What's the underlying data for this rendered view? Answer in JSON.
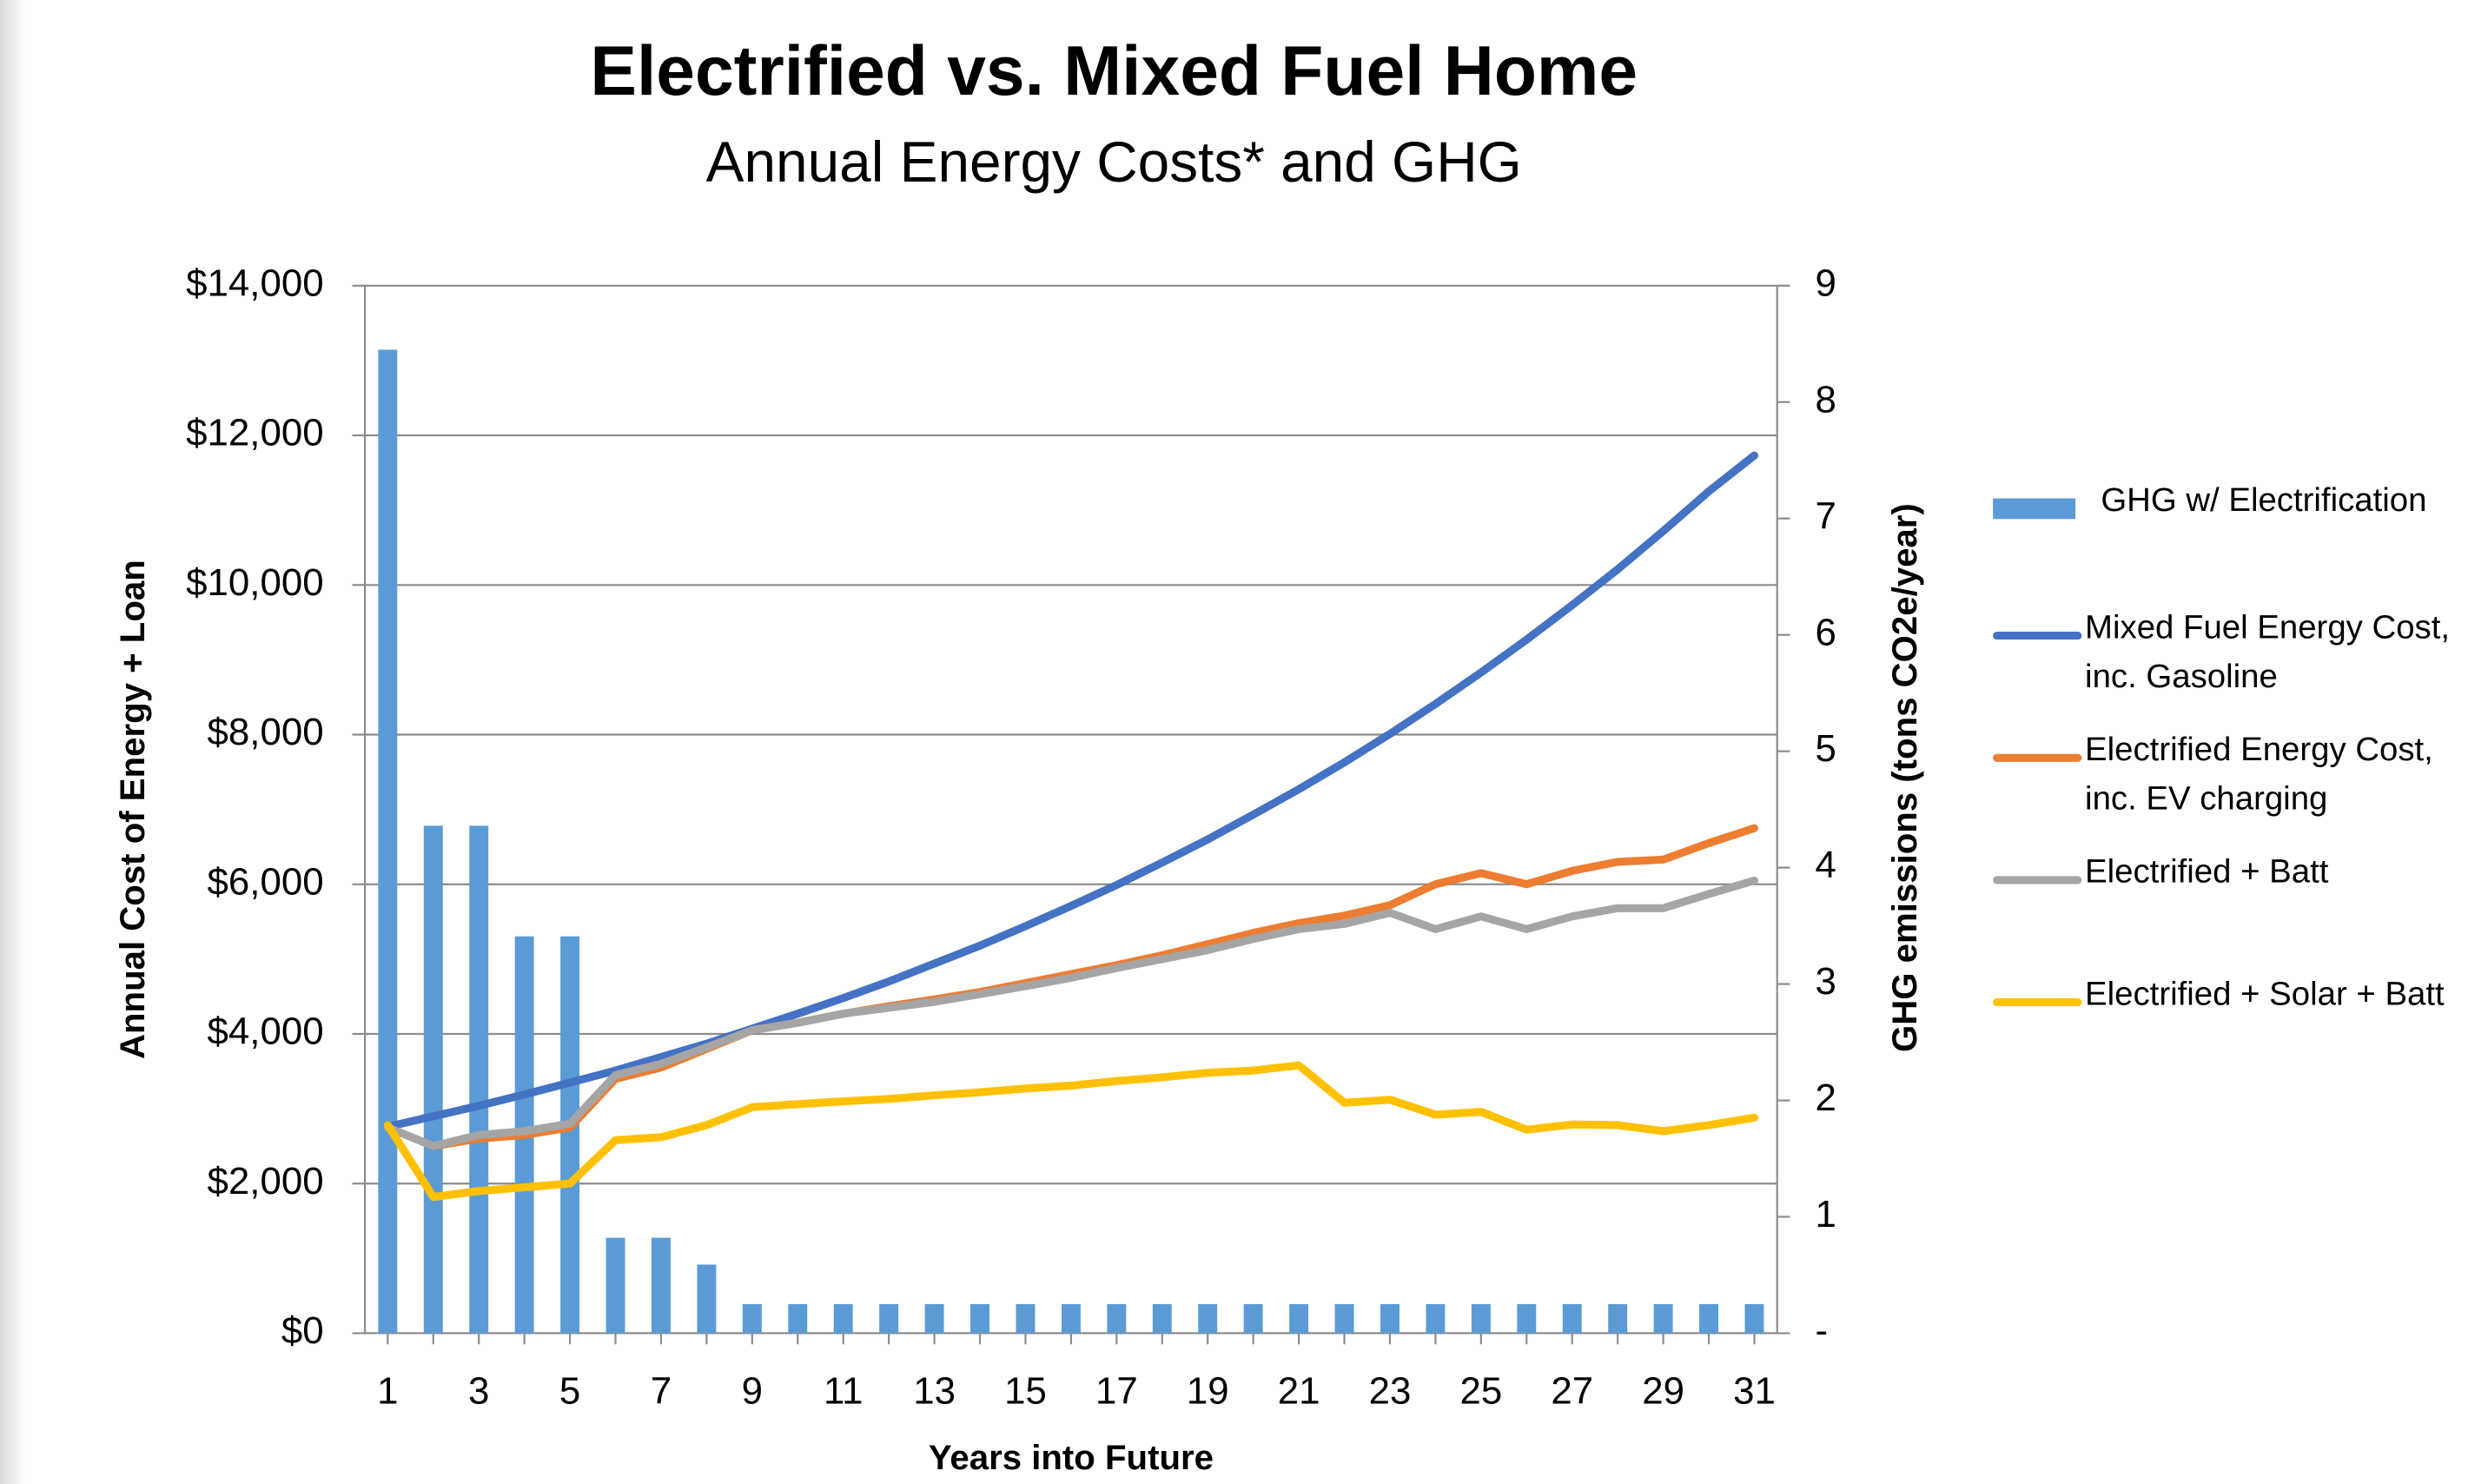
{
  "chart_data": {
    "type": "combo",
    "title": "Electrified vs. Mixed Fuel Home",
    "subtitle": "Annual Energy Costs* and GHG",
    "x_label": "Years into Future",
    "y_label": "Annual Cost of Energy + Loan",
    "y2_label": "GHG emissions (tons CO2e/year)",
    "categories": [
      1,
      null,
      3,
      null,
      5,
      null,
      7,
      null,
      9,
      null,
      11,
      null,
      13,
      null,
      15,
      null,
      17,
      null,
      19,
      null,
      21,
      null,
      23,
      null,
      25,
      null,
      27,
      null,
      29,
      null,
      31
    ],
    "ylim": [
      0,
      14000
    ],
    "yticks": [
      {
        "value": 0,
        "label": "$0"
      },
      {
        "value": 2000,
        "label": "$2,000"
      },
      {
        "value": 4000,
        "label": "$4,000"
      },
      {
        "value": 6000,
        "label": "$6,000"
      },
      {
        "value": 8000,
        "label": "$8,000"
      },
      {
        "value": 10000,
        "label": "$10,000"
      },
      {
        "value": 12000,
        "label": "$12,000"
      },
      {
        "value": 14000,
        "label": "$14,000"
      }
    ],
    "y2lim": [
      0,
      9
    ],
    "y2ticks": [
      {
        "value": 0,
        "label": "-"
      },
      1,
      2,
      3,
      4,
      5,
      6,
      7,
      8,
      9
    ],
    "grid": true,
    "legend": "right",
    "series": [
      {
        "name": "GHG w/ Electrification",
        "type": "bar",
        "axis": "y2",
        "color": "#5b9bd5",
        "values": [
          8.45,
          4.36,
          4.36,
          3.41,
          3.41,
          0.82,
          0.82,
          0.59,
          0.25,
          0.25,
          0.25,
          0.25,
          0.25,
          0.25,
          0.25,
          0.25,
          0.25,
          0.25,
          0.25,
          0.25,
          0.25,
          0.25,
          0.25,
          0.25,
          0.25,
          0.25,
          0.25,
          0.25,
          0.25,
          0.25,
          0.25
        ]
      },
      {
        "name": "Mixed Fuel Energy Cost, inc. Gasoline",
        "type": "line",
        "color": "#4472c4",
        "values": [
          2760,
          2900,
          3040,
          3190,
          3350,
          3510,
          3690,
          3870,
          4070,
          4270,
          4480,
          4700,
          4940,
          5180,
          5440,
          5710,
          5990,
          6290,
          6600,
          6930,
          7270,
          7630,
          8010,
          8410,
          8830,
          9270,
          9730,
          10210,
          10720,
          11250,
          11730
        ]
      },
      {
        "name": "Electrified Energy Cost, inc. EV charging",
        "type": "line",
        "color": "#ed7d31",
        "values": [
          2750,
          2500,
          2600,
          2650,
          2750,
          3400,
          3550,
          3800,
          4050,
          4150,
          4270,
          4370,
          4460,
          4560,
          4680,
          4800,
          4920,
          5050,
          5200,
          5350,
          5480,
          5580,
          5720,
          6000,
          6150,
          6000,
          6180,
          6300,
          6330,
          6550,
          6750
        ]
      },
      {
        "name": "Electrified + Batt",
        "type": "line",
        "color": "#a5a5a5",
        "values": [
          2750,
          2500,
          2650,
          2700,
          2800,
          3450,
          3600,
          3820,
          4050,
          4150,
          4270,
          4350,
          4430,
          4530,
          4640,
          4750,
          4880,
          5000,
          5120,
          5270,
          5400,
          5470,
          5620,
          5400,
          5570,
          5400,
          5570,
          5680,
          5680,
          5870,
          6050
        ]
      },
      {
        "name": "Electrified + Solar + Batt",
        "type": "line",
        "color": "#ffc000",
        "values": [
          2780,
          1820,
          1900,
          1950,
          2000,
          2580,
          2620,
          2780,
          3020,
          3060,
          3100,
          3130,
          3180,
          3220,
          3270,
          3310,
          3370,
          3420,
          3480,
          3510,
          3580,
          3080,
          3120,
          2920,
          2960,
          2720,
          2790,
          2780,
          2700,
          2780,
          2880
        ]
      }
    ]
  }
}
